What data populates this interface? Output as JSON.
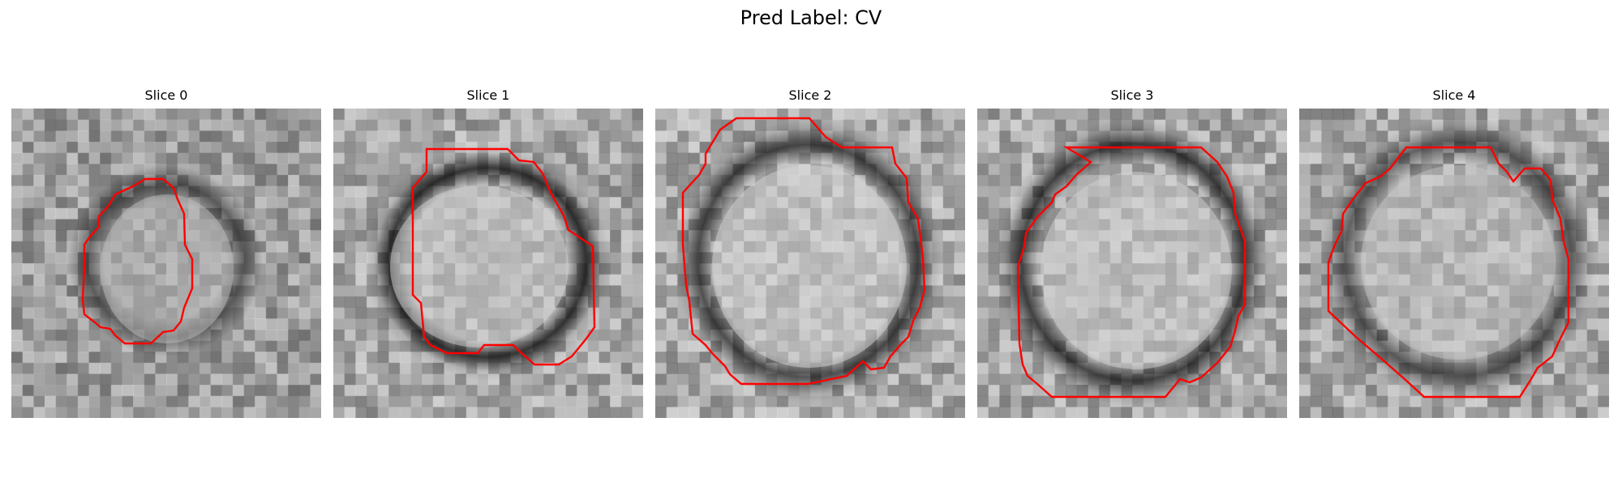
{
  "figure": {
    "title": "Pred Label: CV",
    "contour_color": "#ff0000"
  },
  "panels": [
    {
      "title": "Slice 0",
      "image": "grayscale microscopy slice of a small round vesicle with red segmentation outline"
    },
    {
      "title": "Slice 1",
      "image": "grayscale microscopy slice of a round vesicle with dark membrane ring and red segmentation outline"
    },
    {
      "title": "Slice 2",
      "image": "grayscale microscopy slice of a large bright round vesicle with red segmentation outline"
    },
    {
      "title": "Slice 3",
      "image": "grayscale microscopy slice of a round vesicle with dark rim and red segmentation outline"
    },
    {
      "title": "Slice 4",
      "image": "grayscale microscopy slice of a round vesicle with red segmentation outline"
    }
  ]
}
